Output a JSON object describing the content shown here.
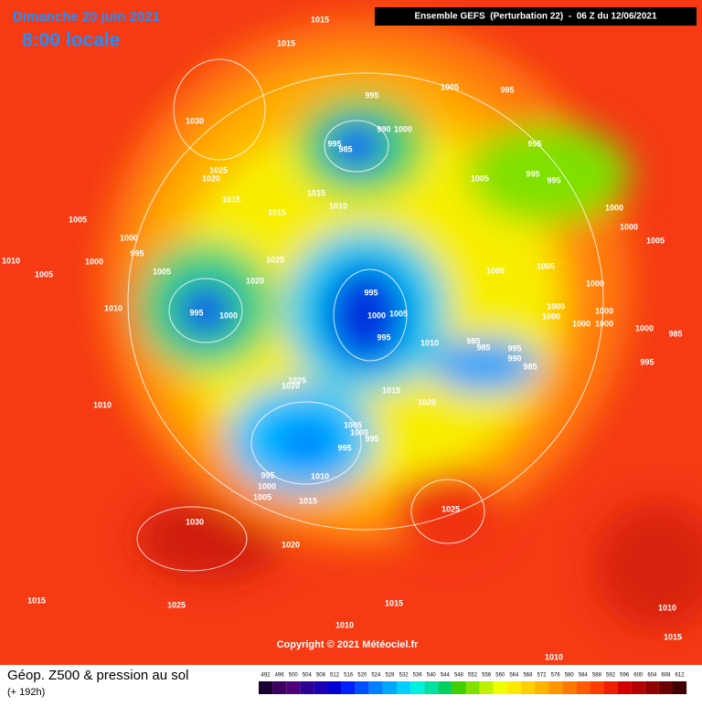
{
  "header": {
    "date": "Dimanche 20 juin 2021",
    "time": "8:00 locale",
    "model": "Ensemble GEFS  (Perturbation 22)  -  06 Z du 12/06/2021"
  },
  "copyright": "Copyright © 2021 Météociel.fr",
  "footer": {
    "title": "Géop. Z500 & pression au sol",
    "lead": "(+ 192h)"
  },
  "colorbar": {
    "values": [
      492,
      496,
      500,
      504,
      508,
      512,
      516,
      520,
      524,
      528,
      532,
      536,
      540,
      544,
      548,
      552,
      556,
      560,
      564,
      568,
      572,
      576,
      580,
      584,
      588,
      592,
      596,
      600,
      604,
      608,
      612
    ],
    "colors": [
      "#1a0030",
      "#3c0060",
      "#50007a",
      "#2d0096",
      "#1e00b4",
      "#0000d2",
      "#0020ff",
      "#0050ff",
      "#0080ff",
      "#00a8ff",
      "#00d0ff",
      "#00f0e0",
      "#00e0a0",
      "#00d060",
      "#40d000",
      "#80e000",
      "#c0f000",
      "#f0ff00",
      "#ffe800",
      "#ffd000",
      "#ffb400",
      "#ff9600",
      "#ff7800",
      "#ff5a00",
      "#ff3c00",
      "#f01e00",
      "#d20000",
      "#b40000",
      "#900000",
      "#6a0000",
      "#400000"
    ]
  },
  "isobar_labels": [
    "1015",
    "1015",
    "1005",
    "995",
    "995",
    "1030",
    "990",
    "1000",
    "995",
    "985",
    "995",
    "1025",
    "1020",
    "995",
    "995",
    "1005",
    "1015",
    "1015",
    "1010",
    "1015",
    "1000",
    "1005",
    "1000",
    "1000",
    "1005",
    "995",
    "1010",
    "1025",
    "1000",
    "1005",
    "1005",
    "1005",
    "1005",
    "1020",
    "1000",
    "995",
    "1010",
    "995",
    "1000",
    "1000",
    "1000",
    "1005",
    "1000",
    "1000",
    "1000",
    "1000",
    "1000",
    "985",
    "995",
    "1010",
    "985",
    "985",
    "995",
    "990",
    "985",
    "995",
    "1025",
    "1020",
    "1015",
    "1010",
    "1020",
    "1005",
    "1000",
    "995",
    "995",
    "995",
    "1010",
    "1000",
    "1005",
    "1015",
    "1025",
    "1030",
    "1020",
    "1015",
    "1025",
    "1015",
    "1010",
    "1010",
    "1015",
    "1010"
  ]
}
